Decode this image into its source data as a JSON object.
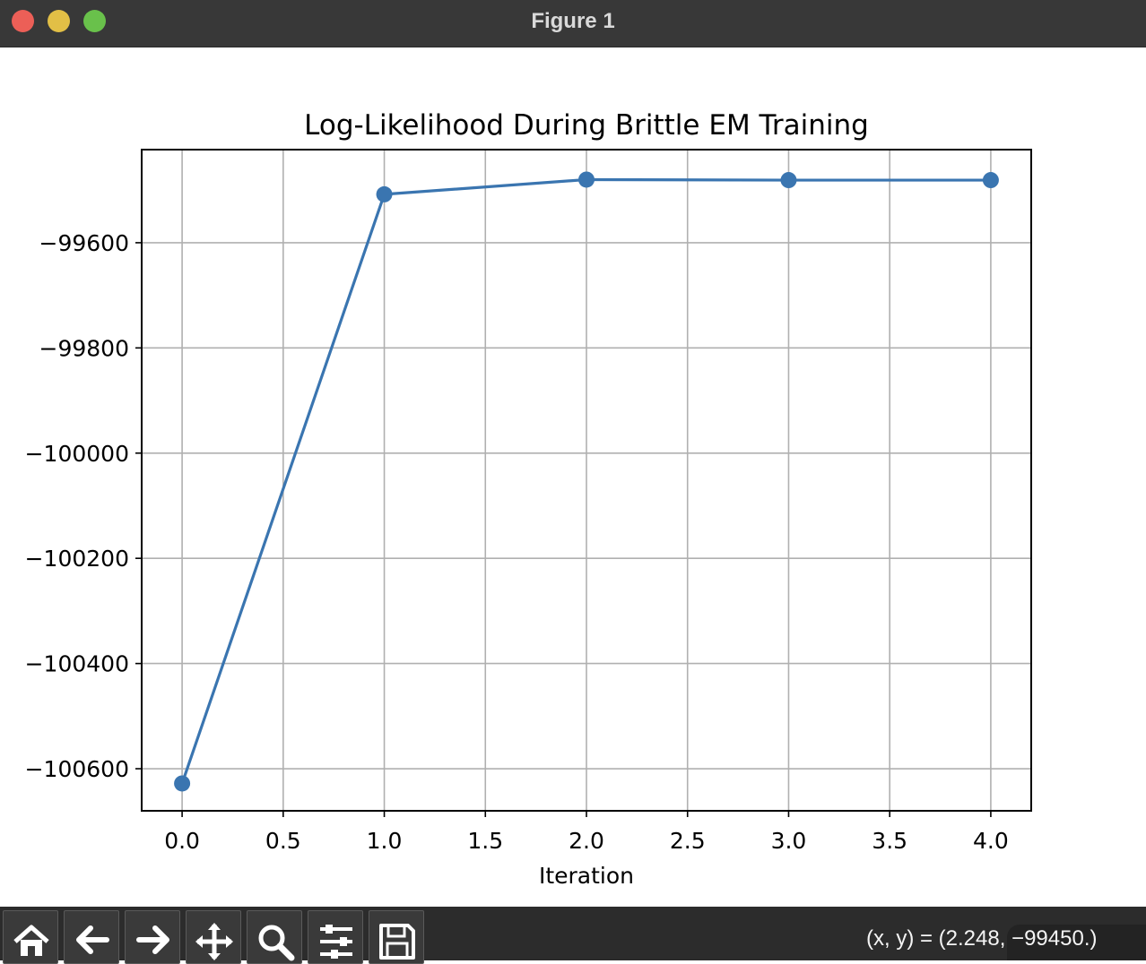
{
  "window": {
    "title": "Figure 1"
  },
  "chart_data": {
    "type": "line",
    "title": "Log-Likelihood During Brittle EM Training",
    "xlabel": "Iteration",
    "ylabel": "",
    "x": [
      0,
      1,
      2,
      3,
      4
    ],
    "series": [
      {
        "values": [
          -100628,
          -99508,
          -99480,
          -99481,
          -99481
        ],
        "color": "#3a75b0",
        "marker": "circle"
      }
    ],
    "xlim": [
      -0.2,
      4.2
    ],
    "ylim": [
      -100680,
      -99423
    ],
    "xticks": [
      0.0,
      0.5,
      1.0,
      1.5,
      2.0,
      2.5,
      3.0,
      3.5,
      4.0
    ],
    "xtick_labels": [
      "0.0",
      "0.5",
      "1.0",
      "1.5",
      "2.0",
      "2.5",
      "3.0",
      "3.5",
      "4.0"
    ],
    "yticks": [
      -99600,
      -99800,
      -100000,
      -100200,
      -100400,
      -100600
    ],
    "ytick_labels": [
      "−99600",
      "−99800",
      "−100000",
      "−100200",
      "−100400",
      "−100600"
    ],
    "grid": true
  },
  "toolbar": {
    "buttons": [
      {
        "name": "home-button",
        "icon": "home-icon"
      },
      {
        "name": "back-button",
        "icon": "arrow-left-icon"
      },
      {
        "name": "forward-button",
        "icon": "arrow-right-icon"
      },
      {
        "name": "pan-button",
        "icon": "move-icon"
      },
      {
        "name": "zoom-button",
        "icon": "magnifier-icon"
      },
      {
        "name": "configure-subplots-button",
        "icon": "sliders-icon"
      },
      {
        "name": "save-button",
        "icon": "floppy-disk-icon"
      }
    ],
    "coordinates": "(x, y) = (2.248, −99450.)"
  }
}
